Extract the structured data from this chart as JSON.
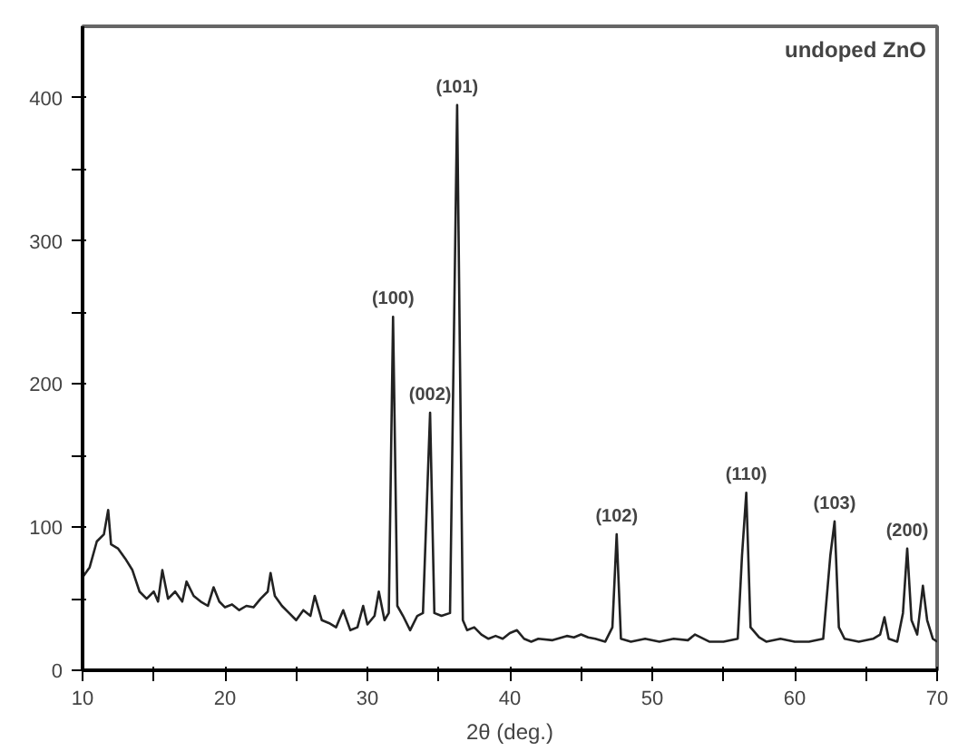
{
  "chart_data": {
    "type": "line",
    "xlabel": "2θ (deg.)",
    "x": [
      10,
      10.5,
      11,
      11.5,
      11.8,
      12,
      12.5,
      13,
      13.5,
      14,
      14.5,
      15,
      15.3,
      15.6,
      16,
      16.5,
      17,
      17.3,
      17.8,
      18.3,
      18.8,
      19.2,
      19.6,
      20,
      20.5,
      21,
      21.5,
      22,
      22.5,
      23,
      23.2,
      23.5,
      24,
      24.5,
      25,
      25.5,
      26,
      26.3,
      26.8,
      27.3,
      27.8,
      28.3,
      28.8,
      29.3,
      29.7,
      30,
      30.5,
      30.8,
      31.2,
      31.5,
      31.8,
      32.1,
      32.5,
      33,
      33.5,
      33.9,
      34.4,
      34.7,
      35.2,
      35.8,
      36.3,
      36.7,
      37,
      37.5,
      38,
      38.5,
      39,
      39.5,
      40,
      40.5,
      41,
      41.5,
      42,
      43,
      44,
      44.5,
      45,
      45.5,
      46,
      46.7,
      47.2,
      47.5,
      47.8,
      48.5,
      49.5,
      50.5,
      51.5,
      52.5,
      53,
      54,
      55,
      56,
      56.3,
      56.6,
      56.9,
      57.5,
      58,
      59,
      60,
      61,
      62,
      62.5,
      62.8,
      63.1,
      63.5,
      64.5,
      65.5,
      66,
      66.3,
      66.6,
      67.2,
      67.6,
      67.9,
      68.2,
      68.6,
      69,
      69.3,
      69.7,
      70
    ],
    "series": [
      {
        "color": "#222222",
        "values": [
          65,
          72,
          90,
          95,
          112,
          88,
          85,
          78,
          70,
          55,
          50,
          55,
          48,
          70,
          50,
          55,
          48,
          62,
          52,
          48,
          45,
          58,
          48,
          44,
          46,
          42,
          45,
          44,
          50,
          55,
          68,
          52,
          45,
          40,
          35,
          42,
          38,
          52,
          35,
          33,
          30,
          42,
          28,
          30,
          45,
          32,
          38,
          55,
          35,
          40,
          247,
          45,
          38,
          28,
          38,
          40,
          180,
          40,
          38,
          40,
          395,
          35,
          28,
          30,
          25,
          22,
          24,
          22,
          26,
          28,
          22,
          20,
          22,
          21,
          24,
          23,
          25,
          23,
          22,
          20,
          30,
          95,
          22,
          20,
          22,
          20,
          22,
          21,
          25,
          20,
          20,
          22,
          80,
          124,
          30,
          23,
          20,
          22,
          20,
          20,
          22,
          80,
          104,
          30,
          22,
          20,
          22,
          25,
          37,
          22,
          20,
          40,
          85,
          35,
          25,
          59,
          35,
          22,
          20
        ]
      }
    ],
    "xlim": [
      10,
      70
    ],
    "ylim": [
      0,
      450
    ],
    "xticks": [
      10,
      {
        "value": 15,
        "label": null
      },
      20,
      {
        "value": 25,
        "label": null
      },
      30,
      {
        "value": 35,
        "label": null
      },
      40,
      {
        "value": 45,
        "label": null
      },
      50,
      {
        "value": 55,
        "label": null
      },
      60,
      {
        "value": 65,
        "label": null
      },
      70
    ],
    "yticks": [
      0,
      {
        "value": 50,
        "label": null
      },
      100,
      {
        "value": 150,
        "label": null
      },
      200,
      {
        "value": 250,
        "label": null
      },
      300,
      {
        "value": 350,
        "label": null
      },
      400
    ],
    "grid": false,
    "line_style": "solid",
    "annotations": [
      "undoped ZnO",
      {
        "text": "(100)",
        "x": 31.8,
        "y": 247
      },
      {
        "text": "(002)",
        "x": 34.4,
        "y": 180
      },
      {
        "text": "(101)",
        "x": 36.3,
        "y": 395
      },
      {
        "text": "(102)",
        "x": 47.5,
        "y": 95
      },
      {
        "text": "(110)",
        "x": 56.6,
        "y": 124
      },
      {
        "text": "(103)",
        "x": 62.8,
        "y": 104
      },
      {
        "text": "(200)",
        "x": 67.9,
        "y": 85
      }
    ]
  }
}
